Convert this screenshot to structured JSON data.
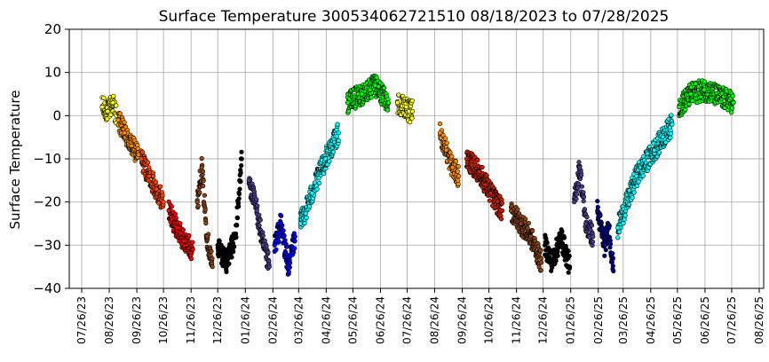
{
  "chart_data": {
    "type": "scatter",
    "title": "Surface Temperature 300534062721510  08/18/2023 to 07/28/2025",
    "xlabel": "",
    "ylabel": "Surface Temperature",
    "ylim": [
      -40,
      20
    ],
    "yticks": [
      20,
      10,
      0,
      -10,
      -20,
      -30,
      -40
    ],
    "xlim": [
      "2023-07-12",
      "2025-08-31"
    ],
    "xtick_labels": [
      "07/26/23",
      "08/26/23",
      "09/26/23",
      "10/26/23",
      "11/26/23",
      "12/26/23",
      "01/26/24",
      "02/26/24",
      "03/26/24",
      "04/26/24",
      "05/26/24",
      "06/26/24",
      "07/26/24",
      "08/26/24",
      "09/26/24",
      "10/26/24",
      "11/26/24",
      "12/26/24",
      "01/26/25",
      "02/26/25",
      "03/26/25",
      "04/26/25",
      "05/26/25",
      "06/26/25",
      "07/26/25",
      "08/26/25"
    ],
    "grid": true,
    "legend": "none",
    "series": [
      {
        "color": "#ffff00",
        "points": [
          [
            "2023-08-18",
            2
          ],
          [
            "2023-08-24",
            1
          ],
          [
            "2023-08-30",
            3
          ],
          [
            "2023-09-03",
            0
          ]
        ]
      },
      {
        "color": "#ff8c00",
        "points": [
          [
            "2023-09-05",
            -1
          ],
          [
            "2023-09-12",
            -4
          ],
          [
            "2023-09-20",
            -7
          ],
          [
            "2023-09-28",
            -9
          ]
        ]
      },
      {
        "color": "#ff4500",
        "points": [
          [
            "2023-10-01",
            -10
          ],
          [
            "2023-10-10",
            -14
          ],
          [
            "2023-10-18",
            -17
          ],
          [
            "2023-10-26",
            -20
          ]
        ]
      },
      {
        "color": "#ff0000",
        "points": [
          [
            "2023-11-01",
            -22
          ],
          [
            "2023-11-10",
            -26
          ],
          [
            "2023-11-18",
            -29
          ],
          [
            "2023-11-28",
            -31
          ]
        ]
      },
      {
        "color": "#8b4513",
        "points": [
          [
            "2023-12-03",
            -20
          ],
          [
            "2023-12-08",
            -12
          ],
          [
            "2023-12-14",
            -28
          ],
          [
            "2023-12-20",
            -35
          ]
        ]
      },
      {
        "color": "#000000",
        "points": [
          [
            "2023-12-26",
            -30
          ],
          [
            "2024-01-05",
            -34
          ],
          [
            "2024-01-15",
            -28
          ],
          [
            "2024-01-22",
            -10
          ]
        ]
      },
      {
        "color": "#483d8b",
        "points": [
          [
            "2024-01-30",
            -15
          ],
          [
            "2024-02-08",
            -22
          ],
          [
            "2024-02-15",
            -30
          ],
          [
            "2024-02-22",
            -35
          ]
        ]
      },
      {
        "color": "#0000ff",
        "points": [
          [
            "2024-02-28",
            -30
          ],
          [
            "2024-03-06",
            -25
          ],
          [
            "2024-03-14",
            -35
          ],
          [
            "2024-03-22",
            -28
          ]
        ]
      },
      {
        "color": "#00ffff",
        "points": [
          [
            "2024-03-28",
            -25
          ],
          [
            "2024-04-10",
            -18
          ],
          [
            "2024-04-25",
            -10
          ],
          [
            "2024-05-10",
            -4
          ]
        ]
      },
      {
        "color": "#00ff00",
        "points": [
          [
            "2024-05-20",
            3
          ],
          [
            "2024-06-05",
            5
          ],
          [
            "2024-06-20",
            7
          ],
          [
            "2024-07-05",
            3
          ]
        ]
      },
      {
        "color": "#ffff00",
        "points": [
          [
            "2024-07-15",
            3
          ],
          [
            "2024-07-25",
            2
          ],
          [
            "2024-07-28",
            1
          ],
          [
            "2024-08-01",
            1
          ]
        ]
      },
      {
        "color": "#ff8c00",
        "points": [
          [
            "2024-09-01",
            -4
          ],
          [
            "2024-09-08",
            -8
          ],
          [
            "2024-09-15",
            -12
          ],
          [
            "2024-09-22",
            -14
          ]
        ]
      },
      {
        "color": "#cd2000",
        "points": [
          [
            "2024-10-01",
            -10
          ],
          [
            "2024-10-15",
            -13
          ],
          [
            "2024-10-28",
            -18
          ],
          [
            "2024-11-10",
            -22
          ]
        ]
      },
      {
        "color": "#8b4513",
        "points": [
          [
            "2024-11-20",
            -22
          ],
          [
            "2024-12-01",
            -25
          ],
          [
            "2024-12-12",
            -28
          ],
          [
            "2024-12-24",
            -34
          ]
        ]
      },
      {
        "color": "#000000",
        "points": [
          [
            "2024-12-28",
            -30
          ],
          [
            "2025-01-05",
            -34
          ],
          [
            "2025-01-15",
            -28
          ],
          [
            "2025-01-25",
            -35
          ]
        ]
      },
      {
        "color": "#483d8b",
        "points": [
          [
            "2025-01-30",
            -20
          ],
          [
            "2025-02-05",
            -12
          ],
          [
            "2025-02-12",
            -25
          ],
          [
            "2025-02-20",
            -28
          ]
        ]
      },
      {
        "color": "#00008b",
        "points": [
          [
            "2025-02-25",
            -22
          ],
          [
            "2025-03-05",
            -30
          ],
          [
            "2025-03-10",
            -26
          ],
          [
            "2025-03-15",
            -36
          ]
        ]
      },
      {
        "color": "#00ffff",
        "points": [
          [
            "2025-03-20",
            -26
          ],
          [
            "2025-04-10",
            -14
          ],
          [
            "2025-04-30",
            -8
          ],
          [
            "2025-05-20",
            -2
          ]
        ]
      },
      {
        "color": "#00ff00",
        "points": [
          [
            "2025-05-28",
            2
          ],
          [
            "2025-06-10",
            5
          ],
          [
            "2025-06-25",
            6
          ],
          [
            "2025-07-28",
            3
          ]
        ]
      }
    ]
  }
}
